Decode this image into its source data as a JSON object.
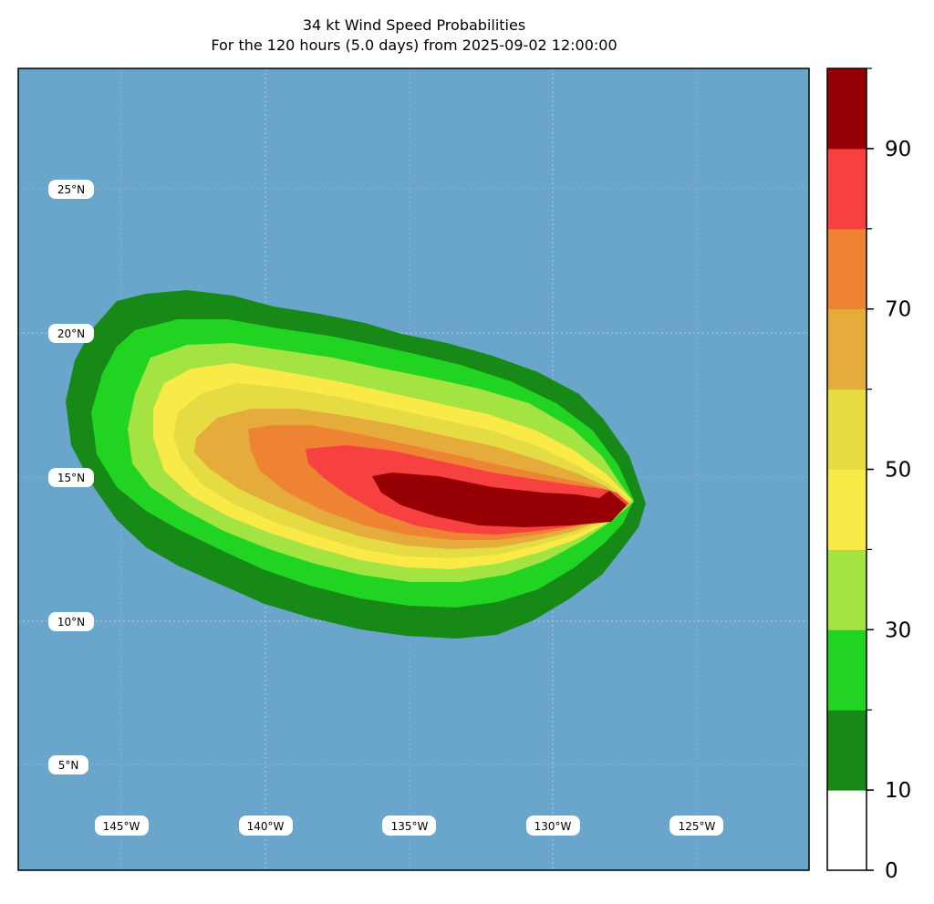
{
  "title": "34 kt Wind Speed Probabilities",
  "subtitle": "For the 120 hours (5.0 days) from 2025-09-02 12:00:00",
  "colors": {
    "ocean": "#6aa6cb",
    "levels": [
      "#ffffff",
      "#168916",
      "#22d422",
      "#a3e342",
      "#f9ea47",
      "#e5db42",
      "#e5ac3c",
      "#ee8333",
      "#f74040",
      "#960004",
      "#7e27d9"
    ]
  },
  "lat_labels": [
    "25°N",
    "20°N",
    "15°N",
    "10°N",
    "5°N"
  ],
  "lon_labels": [
    "145°W",
    "140°W",
    "135°W",
    "130°W",
    "125°W"
  ],
  "colorbar": {
    "min": 0,
    "max": 100,
    "step": 10,
    "tick_labels": [
      "0",
      "10",
      "30",
      "50",
      "70",
      "90"
    ]
  },
  "chart_data": {
    "type": "heatmap",
    "variable": "probability of 34 kt winds",
    "grid": "lat/lon",
    "lat_ticks": [
      25,
      20,
      15,
      10,
      5
    ],
    "lon_ticks": [
      -145,
      -140,
      -135,
      -130,
      -125
    ],
    "levels": [
      0,
      10,
      20,
      30,
      40,
      50,
      60,
      70,
      80,
      90,
      100
    ],
    "max_probability_region_lat": [
      14,
      15
    ],
    "max_probability_region_lon": [
      -135,
      -128
    ]
  }
}
